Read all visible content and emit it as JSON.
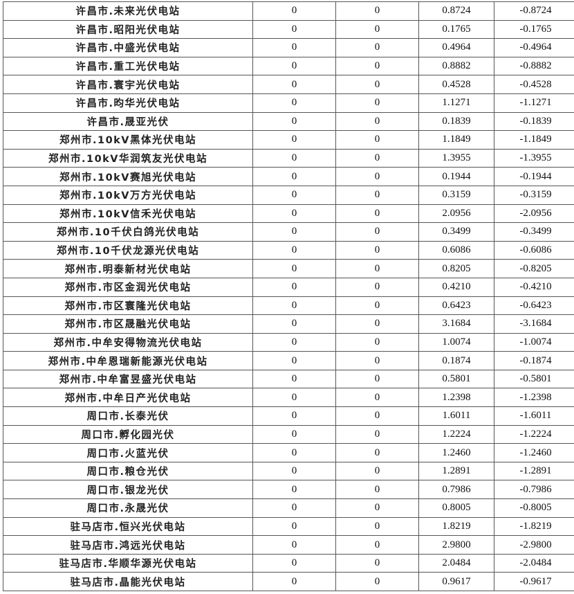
{
  "table": {
    "rows": [
      [
        "许昌市.未来光伏电站",
        "0",
        "0",
        "0.8724",
        "-0.8724"
      ],
      [
        "许昌市.昭阳光伏电站",
        "0",
        "0",
        "0.1765",
        "-0.1765"
      ],
      [
        "许昌市.中盛光伏电站",
        "0",
        "0",
        "0.4964",
        "-0.4964"
      ],
      [
        "许昌市.重工光伏电站",
        "0",
        "0",
        "0.8882",
        "-0.8882"
      ],
      [
        "许昌市.寰宇光伏电站",
        "0",
        "0",
        "0.4528",
        "-0.4528"
      ],
      [
        "许昌市.昀华光伏电站",
        "0",
        "0",
        "1.1271",
        "-1.1271"
      ],
      [
        "许昌市.晟亚光伏",
        "0",
        "0",
        "0.1839",
        "-0.1839"
      ],
      [
        "郑州市.10kV黑体光伏电站",
        "0",
        "0",
        "1.1849",
        "-1.1849"
      ],
      [
        "郑州市.10kV华润筑友光伏电站",
        "0",
        "0",
        "1.3955",
        "-1.3955"
      ],
      [
        "郑州市.10kV赛旭光伏电站",
        "0",
        "0",
        "0.1944",
        "-0.1944"
      ],
      [
        "郑州市.10kV万方光伏电站",
        "0",
        "0",
        "0.3159",
        "-0.3159"
      ],
      [
        "郑州市.10kV信禾光伏电站",
        "0",
        "0",
        "2.0956",
        "-2.0956"
      ],
      [
        "郑州市.10千伏白鸽光伏电站",
        "0",
        "0",
        "0.3499",
        "-0.3499"
      ],
      [
        "郑州市.10千伏龙源光伏电站",
        "0",
        "0",
        "0.6086",
        "-0.6086"
      ],
      [
        "郑州市.明泰新材光伏电站",
        "0",
        "0",
        "0.8205",
        "-0.8205"
      ],
      [
        "郑州市.市区金润光伏电站",
        "0",
        "0",
        "0.4210",
        "-0.4210"
      ],
      [
        "郑州市.市区寰隆光伏电站",
        "0",
        "0",
        "0.6423",
        "-0.6423"
      ],
      [
        "郑州市.市区晟融光伏电站",
        "0",
        "0",
        "3.1684",
        "-3.1684"
      ],
      [
        "郑州市.中牟安得物流光伏电站",
        "0",
        "0",
        "1.0074",
        "-1.0074"
      ],
      [
        "郑州市.中牟恩瑞新能源光伏电站",
        "0",
        "0",
        "0.1874",
        "-0.1874"
      ],
      [
        "郑州市.中牟富昱盛光伏电站",
        "0",
        "0",
        "0.5801",
        "-0.5801"
      ],
      [
        "郑州市.中牟日产光伏电站",
        "0",
        "0",
        "1.2398",
        "-1.2398"
      ],
      [
        "周口市.长泰光伏",
        "0",
        "0",
        "1.6011",
        "-1.6011"
      ],
      [
        "周口市.孵化园光伏",
        "0",
        "0",
        "1.2224",
        "-1.2224"
      ],
      [
        "周口市.火蓝光伏",
        "0",
        "0",
        "1.2460",
        "-1.2460"
      ],
      [
        "周口市.粮仓光伏",
        "0",
        "0",
        "1.2891",
        "-1.2891"
      ],
      [
        "周口市.银龙光伏",
        "0",
        "0",
        "0.7986",
        "-0.7986"
      ],
      [
        "周口市.永晟光伏",
        "0",
        "0",
        "0.8005",
        "-0.8005"
      ],
      [
        "驻马店市.恒兴光伏电站",
        "0",
        "0",
        "1.8219",
        "-1.8219"
      ],
      [
        "驻马店市.鸿远光伏电站",
        "0",
        "0",
        "2.9800",
        "-2.9800"
      ],
      [
        "驻马店市.华顺华源光伏电站",
        "0",
        "0",
        "2.0484",
        "-2.0484"
      ],
      [
        "驻马店市.晶能光伏电站",
        "0",
        "0",
        "0.9617",
        "-0.9617"
      ]
    ]
  }
}
